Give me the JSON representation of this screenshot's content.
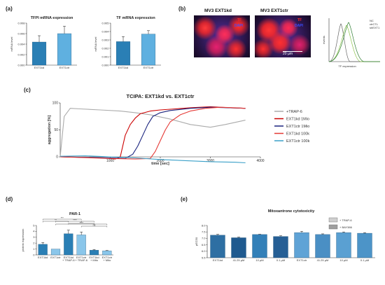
{
  "panels": {
    "a": "(a)",
    "b": "(b)",
    "c": "(c)",
    "d": "(d)",
    "e": "(e)"
  },
  "panel_b": {
    "left_image_title": "MV3 EXT1kd",
    "right_image_title": "MV3 EXT1ctr",
    "tf_label": "TF",
    "dapi_label": "DAPI",
    "scale_bar_label": "20 µm",
    "hist_legend": [
      "NC",
      "ctrCTL",
      "shEXT1"
    ],
    "hist_xlabel": "TF expression",
    "hist_ylabel": "events"
  },
  "colors": {
    "bar_blue": "#2a7fb5",
    "bar_light_blue": "#5fb0e0",
    "trap6_gray": "#aaaaaa",
    "kd1mio_red": "#cc0000",
    "ctr1mio_navy": "#1a237e",
    "kd100k_red": "#e53935",
    "ctr100k_teal": "#3aa0c8"
  },
  "chart_data": [
    {
      "id": "tfpi",
      "type": "bar",
      "title": "TFPI mRNA expression",
      "ylabel": "mRNA level",
      "categories": [
        "EXT1kd",
        "EXT1ctr"
      ],
      "values": [
        0.0044,
        0.006
      ],
      "errors": [
        0.0012,
        0.0014
      ],
      "ylim": [
        0,
        0.008
      ],
      "yticks": [
        "0.000",
        "0.002",
        "0.004",
        "0.006",
        "0.008"
      ]
    },
    {
      "id": "tf",
      "type": "bar",
      "title": "TF mRNA expression",
      "ylabel": "mRNA level",
      "categories": [
        "EXT1kd",
        "EXT1ctr"
      ],
      "values": [
        0.0028,
        0.0037
      ],
      "errors": [
        0.0006,
        0.0004
      ],
      "ylim": [
        0,
        0.005
      ],
      "yticks": [
        "0.000",
        "0.001",
        "0.002",
        "0.003",
        "0.004",
        "0.005"
      ]
    },
    {
      "id": "tcipa",
      "type": "line",
      "title": "TCIPA: EXT1kd vs. EXT1ctr",
      "xlabel": "time [sec]",
      "ylabel": "aggregation [%]",
      "xlim": [
        0,
        4000
      ],
      "ylim": [
        0,
        100
      ],
      "xticks": [
        "1000",
        "2000",
        "3000",
        "4000"
      ],
      "yticks": [
        "0",
        "50",
        "100"
      ],
      "series": [
        {
          "name": "+TRAP-6",
          "x": [
            0,
            80,
            200,
            400,
            800,
            1200,
            1500,
            1800,
            2200,
            2600,
            3000,
            3300,
            3700
          ],
          "y": [
            0,
            75,
            90,
            89,
            87,
            85,
            82,
            78,
            70,
            60,
            55,
            60,
            68
          ]
        },
        {
          "name": "EXT1kd 1Mio",
          "x": [
            0,
            900,
            1100,
            1200,
            1300,
            1400,
            1500,
            1600,
            1800,
            2000,
            2300,
            2600,
            3000,
            3400,
            3700
          ],
          "y": [
            0,
            -2,
            -4,
            0,
            40,
            60,
            72,
            80,
            85,
            87,
            89,
            91,
            93,
            91,
            90
          ]
        },
        {
          "name": "EXT1ctr 1Mio",
          "x": [
            0,
            1000,
            1300,
            1450,
            1550,
            1650,
            1750,
            1850,
            2000,
            2200,
            2600,
            3000,
            3400,
            3700
          ],
          "y": [
            0,
            -2,
            -3,
            5,
            20,
            40,
            60,
            75,
            82,
            86,
            90,
            92,
            91,
            90
          ]
        },
        {
          "name": "EXT1kd 100k",
          "x": [
            0,
            1000,
            1500,
            1800,
            1900,
            2000,
            2100,
            2200,
            2400,
            2600,
            2900,
            3200,
            3500,
            3700
          ],
          "y": [
            0,
            -3,
            -4,
            -3,
            10,
            30,
            50,
            65,
            78,
            85,
            90,
            92,
            91,
            90
          ]
        },
        {
          "name": "EXT1ctr 100k",
          "x": [
            0,
            500,
            1000,
            1500,
            2000,
            2500,
            3000,
            3500,
            3700
          ],
          "y": [
            1,
            2,
            0,
            -2,
            -5,
            -7,
            -9,
            -10,
            -11
          ]
        }
      ]
    },
    {
      "id": "par1",
      "type": "bar",
      "title": "PAR-1",
      "ylabel": "protein expression",
      "categories": [
        "EXT1kd",
        "EXT1ctr",
        "EXT1kd + TRAP-6",
        "EXT1ctr + TRAP-6",
        "EXT1kd + Mito",
        "EXT1ctr + Mito"
      ],
      "values": [
        1.8,
        1.0,
        3.6,
        3.4,
        0.8,
        0.7
      ],
      "errors": [
        0.3,
        0.0,
        0.6,
        0.5,
        0.1,
        0.05
      ],
      "ylim": [
        0,
        5
      ],
      "yticks": [
        "0",
        "1",
        "2",
        "3",
        "4",
        "5"
      ],
      "significance": [
        "**",
        "***",
        "****",
        "*",
        "****",
        "ns"
      ]
    },
    {
      "id": "mito",
      "type": "bar",
      "title": "Mitoxantrone cytotoxicity",
      "ylabel": "pEC50",
      "categories": [
        "EXT1kd",
        "41.25 µM",
        "10 µM",
        "0.1 µM",
        "EXT1ctr",
        "41.25 µM",
        "10 µM",
        "0.1 µM"
      ],
      "values": [
        7.25,
        7.05,
        7.3,
        7.15,
        7.45,
        7.3,
        7.45,
        7.4
      ],
      "errors": [
        0.06,
        0.05,
        0.02,
        0.05,
        0.1,
        0.05,
        0.05,
        0.04
      ],
      "ylim": [
        5.5,
        8.0
      ],
      "yticks": [
        "5.5",
        "6.0",
        "6.5",
        "7.0",
        "7.5",
        "8.0"
      ],
      "legend": [
        "+ TRAP-6",
        "+ BAY386"
      ]
    }
  ]
}
